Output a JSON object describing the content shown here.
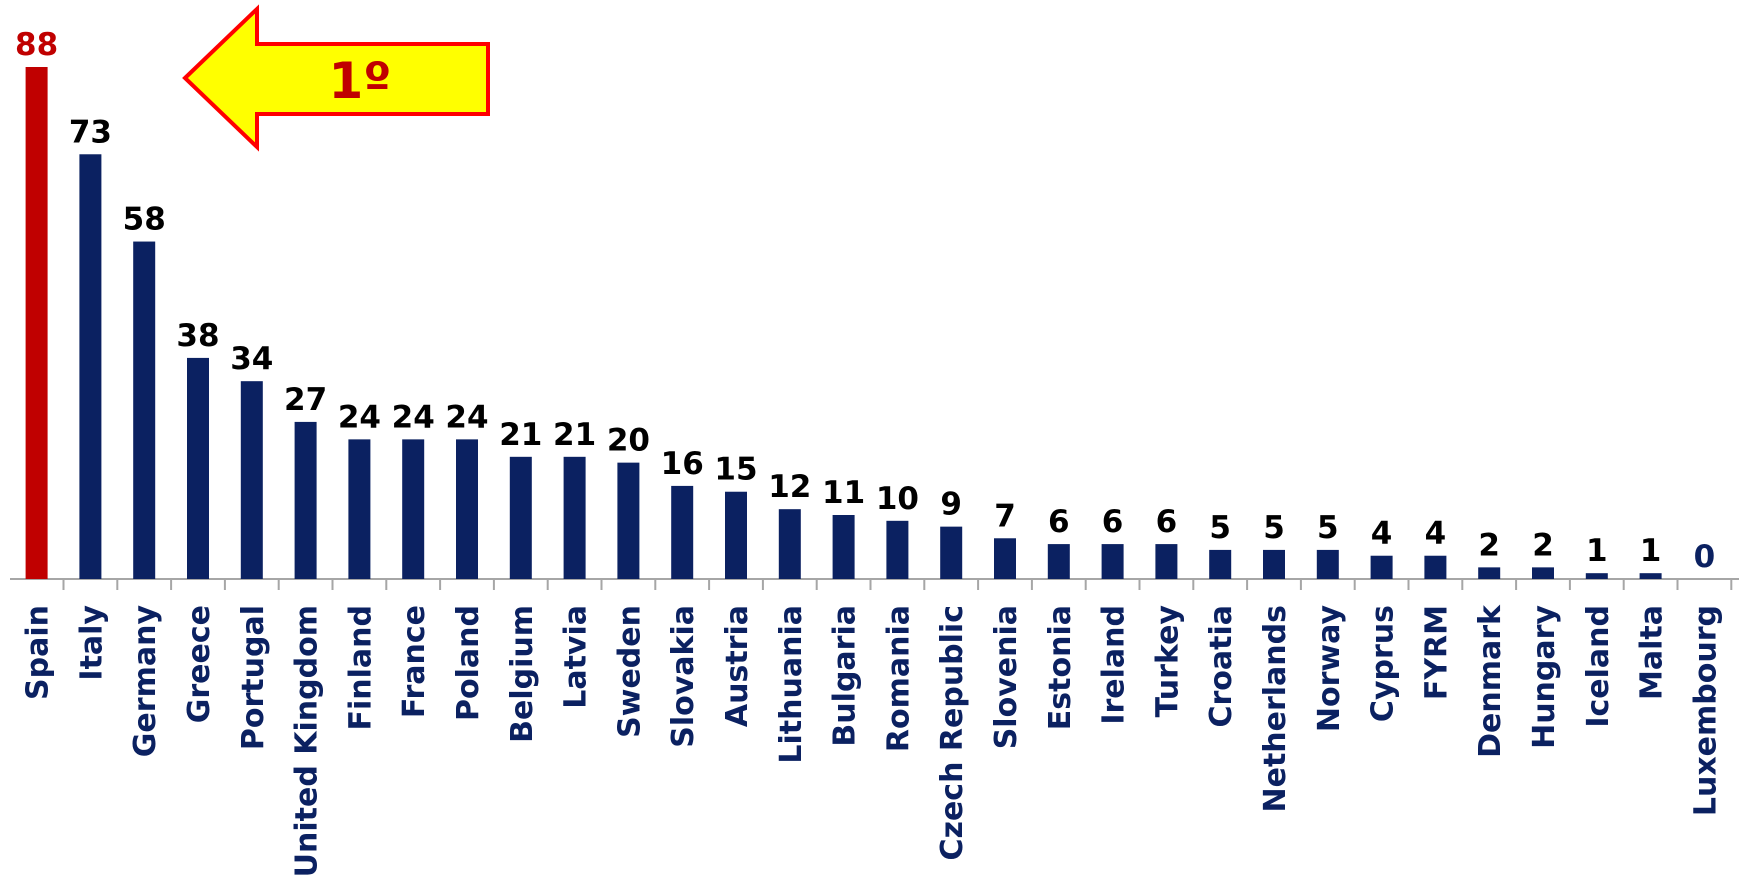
{
  "chart_data": {
    "type": "bar",
    "categories": [
      "Spain",
      "Italy",
      "Germany",
      "Greece",
      "Portugal",
      "United Kingdom",
      "Finland",
      "France",
      "Poland",
      "Belgium",
      "Latvia",
      "Sweden",
      "Slovakia",
      "Austria",
      "Lithuania",
      "Bulgaria",
      "Romania",
      "Czech Republic",
      "Slovenia",
      "Estonia",
      "Ireland",
      "Turkey",
      "Croatia",
      "Netherlands",
      "Norway",
      "Cyprus",
      "FYRM",
      "Denmark",
      "Hungary",
      "Iceland",
      "Malta",
      "Luxembourg"
    ],
    "values": [
      88,
      73,
      58,
      38,
      34,
      27,
      24,
      24,
      24,
      21,
      21,
      20,
      16,
      15,
      12,
      11,
      10,
      9,
      7,
      6,
      6,
      6,
      5,
      5,
      5,
      4,
      4,
      2,
      2,
      1,
      1,
      0
    ],
    "colors": [
      "#c00000",
      "#0b2161",
      "#0b2161",
      "#0b2161",
      "#0b2161",
      "#0b2161",
      "#0b2161",
      "#0b2161",
      "#0b2161",
      "#0b2161",
      "#0b2161",
      "#0b2161",
      "#0b2161",
      "#0b2161",
      "#0b2161",
      "#0b2161",
      "#0b2161",
      "#0b2161",
      "#0b2161",
      "#0b2161",
      "#0b2161",
      "#0b2161",
      "#0b2161",
      "#0b2161",
      "#0b2161",
      "#0b2161",
      "#0b2161",
      "#0b2161",
      "#0b2161",
      "#0b2161",
      "#0b2161",
      "#0b2161"
    ],
    "label_colors": [
      "#c00000",
      "#000000",
      "#000000",
      "#000000",
      "#000000",
      "#000000",
      "#000000",
      "#000000",
      "#000000",
      "#000000",
      "#000000",
      "#000000",
      "#000000",
      "#000000",
      "#000000",
      "#000000",
      "#000000",
      "#000000",
      "#000000",
      "#000000",
      "#000000",
      "#000000",
      "#000000",
      "#000000",
      "#000000",
      "#000000",
      "#000000",
      "#000000",
      "#000000",
      "#000000",
      "#000000",
      "#0b2161"
    ],
    "annotation": "1º"
  }
}
